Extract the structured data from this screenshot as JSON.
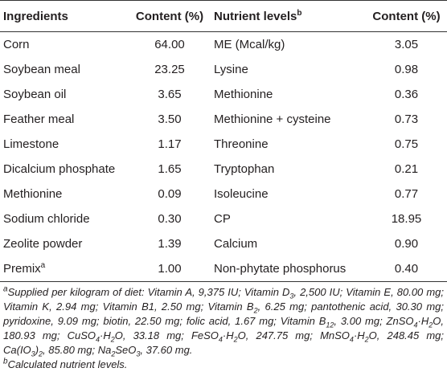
{
  "table": {
    "headers": [
      "Ingredients",
      "Content (%)",
      {
        "text": "Nutrient levels",
        "note": "b"
      },
      "Content (%)"
    ],
    "rows": [
      [
        "Corn",
        "64.00",
        "ME (Mcal/kg)",
        "3.05"
      ],
      [
        "Soybean meal",
        "23.25",
        "Lysine",
        "0.98"
      ],
      [
        "Soybean oil",
        "3.65",
        "Methionine",
        "0.36"
      ],
      [
        "Feather meal",
        "3.50",
        "Methionine + cysteine",
        "0.73"
      ],
      [
        "Limestone",
        "1.17",
        "Threonine",
        "0.75"
      ],
      [
        "Dicalcium phosphate",
        "1.65",
        "Tryptophan",
        "0.21"
      ],
      [
        "Methionine",
        "0.09",
        "Isoleucine",
        "0.77"
      ],
      [
        "Sodium chloride",
        "0.30",
        "CP",
        "18.95"
      ],
      [
        "Zeolite powder",
        "1.39",
        "Calcium",
        "0.90"
      ],
      [
        {
          "text": "Premix",
          "note": "a"
        },
        "1.00",
        "Non-phytate phosphorus",
        "0.40"
      ]
    ]
  },
  "footnotes": [
    {
      "mark": "a",
      "parts": [
        "Supplied per kilogram of diet: Vitamin A, 9,375 IU; Vitamin D",
        "3",
        ", 2,500 IU; Vitamin E, 80.00 mg; Vitamin K, 2.94 mg; Vitamin B1, 2.50 mg; Vitamin B",
        "2",
        ", 6.25 mg; pantothenic acid, 30.30 mg; pyridoxine, 9.09 mg; biotin, 22.50 mg; folic acid, 1.67 mg; Vitamin B",
        "12",
        ", 3.00 mg; ZnSO",
        "4",
        "·H",
        "2",
        "O, 180.93 mg; CuSO",
        "4",
        "·H",
        "2",
        "O, 33.18 mg; FeSO",
        "4",
        "·H",
        "2",
        "O, 247.75 mg; MnSO",
        "4",
        "·H",
        "2",
        "O, 248.45 mg; Ca(IO",
        "3",
        ")",
        "2",
        ", 85.80 mg; Na",
        "2",
        "SeO",
        "3",
        ", 37.60 mg."
      ]
    },
    {
      "mark": "b",
      "parts": [
        "Calculated nutrient levels."
      ]
    }
  ]
}
